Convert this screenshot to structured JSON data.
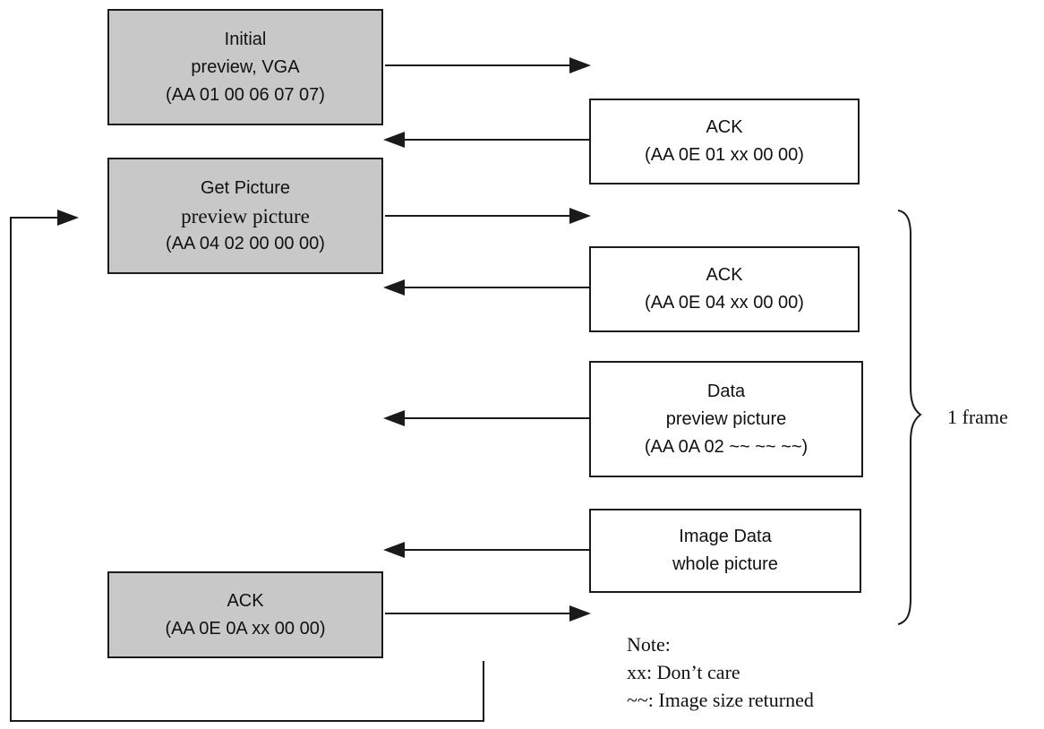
{
  "host_boxes": {
    "initial": {
      "line1": "Initial",
      "line2": "preview, VGA",
      "line3": "(AA 01 00 06 07 07)"
    },
    "get_picture": {
      "line1": "Get Picture",
      "line2": "preview picture",
      "line3": "(AA 04 02 00 00 00)"
    },
    "ack_final": {
      "line1": "ACK",
      "line2": "(AA 0E 0A xx 00 00)"
    }
  },
  "camera_boxes": {
    "ack_initial": {
      "line1": "ACK",
      "line2": "(AA 0E 01 xx 00 00)"
    },
    "ack_get_picture": {
      "line1": "ACK",
      "line2": "(AA 0E 04 xx 00 00)"
    },
    "data": {
      "line1": "Data",
      "line2": "preview picture",
      "line3": "(AA 0A 02 ~~ ~~ ~~)"
    },
    "image_data": {
      "line1": "Image Data",
      "line2": "whole picture"
    }
  },
  "frame_label": "1 frame",
  "note": {
    "title": "Note:",
    "line1": "xx: Don’t care",
    "line2": "~~: Image size returned"
  },
  "colors": {
    "host_box_fill": "#c8c8c8",
    "camera_box_fill": "#ffffff",
    "stroke": "#1a1a1a"
  }
}
